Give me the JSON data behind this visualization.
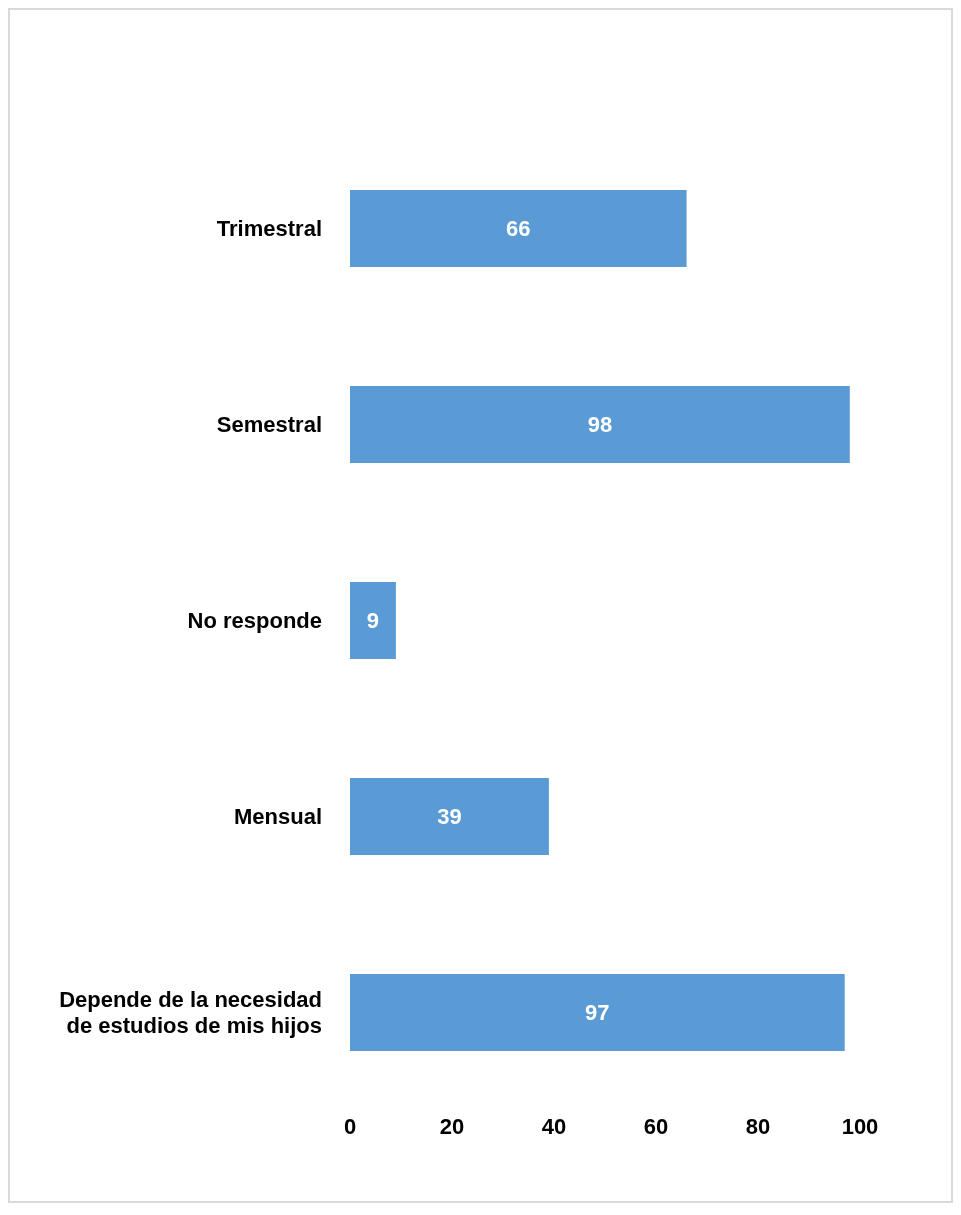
{
  "chart_data": {
    "type": "bar",
    "orientation": "horizontal",
    "categories": [
      "Trimestral",
      "Semestral",
      "No responde",
      "Mensual",
      "Depende de la necesidad de estudios de mis hijos"
    ],
    "values": [
      66,
      98,
      9,
      39,
      97
    ],
    "color": "#5b9bd5",
    "xlim": [
      0,
      100
    ],
    "xticks": [
      0,
      20,
      40,
      60,
      80,
      100
    ],
    "data_labels": true,
    "grid": false
  }
}
